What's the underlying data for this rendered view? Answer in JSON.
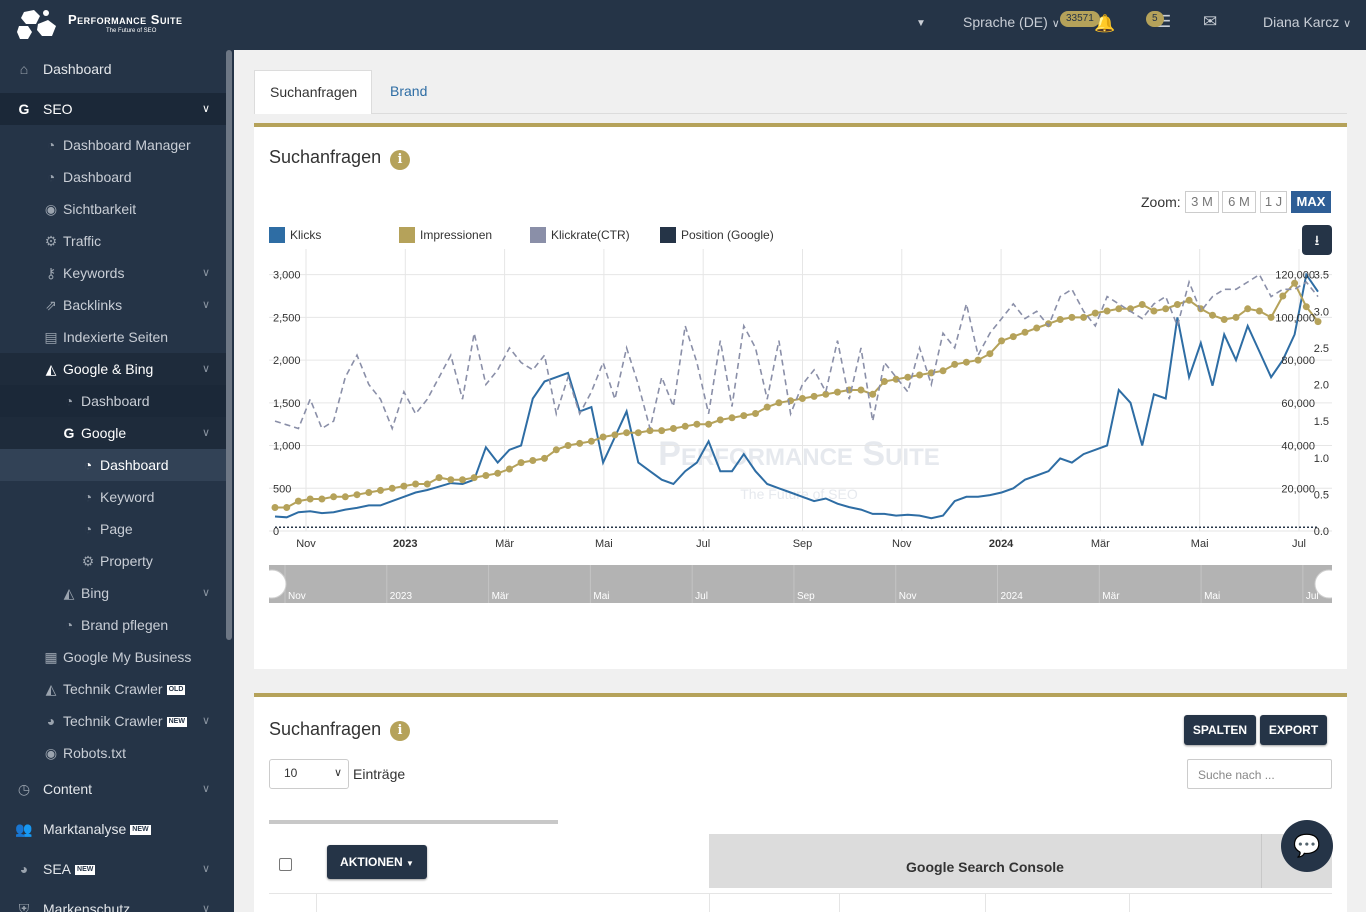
{
  "header": {
    "logo_title": "Performance Suite",
    "logo_subtitle": "The Future of SEO",
    "language": "Sprache (DE)",
    "notifications_count": "33571",
    "tasks_count": "5",
    "user_name": "Diana Karcz"
  },
  "sidebar": {
    "items": [
      {
        "label": "Dashboard",
        "icon": "home-icon"
      },
      {
        "label": "SEO",
        "icon": "google-icon"
      },
      {
        "label": "Dashboard Manager",
        "icon": "dashboard-icon"
      },
      {
        "label": "Dashboard",
        "icon": "dashboard-icon"
      },
      {
        "label": "Sichtbarkeit",
        "icon": "eye-icon"
      },
      {
        "label": "Traffic",
        "icon": "cogs-icon"
      },
      {
        "label": "Keywords",
        "icon": "key-icon"
      },
      {
        "label": "Backlinks",
        "icon": "external-link-icon"
      },
      {
        "label": "Indexierte Seiten",
        "icon": "file-icon"
      },
      {
        "label": "Google & Bing",
        "icon": "area-chart-icon"
      },
      {
        "label": "Dashboard",
        "icon": "dashboard-icon"
      },
      {
        "label": "Google",
        "icon": "google-icon"
      },
      {
        "label": "Dashboard",
        "icon": "dashboard-icon"
      },
      {
        "label": "Keyword",
        "icon": "dashboard-icon"
      },
      {
        "label": "Page",
        "icon": "dashboard-icon"
      },
      {
        "label": "Property",
        "icon": "cogs-icon"
      },
      {
        "label": "Bing",
        "icon": "area-chart-icon"
      },
      {
        "label": "Brand pflegen",
        "icon": "dashboard-icon"
      },
      {
        "label": "Google My Business",
        "icon": "store-icon"
      },
      {
        "label": "Technik Crawler",
        "icon": "area-chart-icon",
        "tag": "OLD"
      },
      {
        "label": "Technik Crawler",
        "icon": "pie-chart-icon",
        "tag": "NEW"
      },
      {
        "label": "Robots.txt",
        "icon": "eye-icon"
      },
      {
        "label": "Content",
        "icon": "clock-icon"
      },
      {
        "label": "Marktanalyse",
        "icon": "users-icon",
        "tag": "NEW"
      },
      {
        "label": "SEA",
        "icon": "pie-chart-icon",
        "tag": "NEW"
      },
      {
        "label": "Markenschutz",
        "icon": "shield-icon"
      }
    ]
  },
  "tabs": [
    {
      "label": "Suchanfragen"
    },
    {
      "label": "Brand"
    }
  ],
  "chart_card": {
    "title": "Suchanfragen",
    "zoom_label": "Zoom:",
    "zoom_options": [
      "3 M",
      "6 M",
      "1 J",
      "MAX"
    ],
    "zoom_selected": "MAX",
    "watermark_title": "Performance Suite",
    "watermark_sub": "The Future of SEO"
  },
  "colors": {
    "klicks": "#2e6da4",
    "impressionen": "#b5a25a",
    "ctr": "#8a8fa8",
    "position": "#253447",
    "accent": "#b5a25a",
    "dark": "#253447"
  },
  "chart_data": {
    "type": "line",
    "x_axis_labels": [
      "Nov",
      "2023",
      "Mär",
      "Mai",
      "Jul",
      "Sep",
      "Nov",
      "2024",
      "Mär",
      "Mai",
      "Jul"
    ],
    "navigator_labels": [
      "Nov",
      "2023",
      "Mär",
      "Mai",
      "Jul",
      "Sep",
      "Nov",
      "2024",
      "Mär",
      "Mai",
      "Jul"
    ],
    "y_left_ticks": [
      "3,000",
      "2,500",
      "2,000",
      "1,500",
      "1,000",
      "500",
      "0"
    ],
    "y_impr_ticks": [
      "120,000",
      "100,000",
      "80,000",
      "60,000",
      "40,000",
      "20,000"
    ],
    "y_ctr_ticks": [
      "3.5",
      "3.0",
      "2.5",
      "2.0",
      "1.5",
      "1.0",
      "0.5",
      "0.0"
    ],
    "legend": [
      "Klicks",
      "Impressionen",
      "Klickrate(CTR)",
      "Position (Google)"
    ],
    "ylim_left": [
      0,
      3000
    ],
    "ylim_impressionen": [
      0,
      120000
    ],
    "ylim_ctr": [
      0,
      3.5
    ],
    "series": [
      {
        "name": "Klicks",
        "axis": "left",
        "values": [
          170,
          160,
          220,
          230,
          210,
          220,
          250,
          270,
          300,
          300,
          350,
          400,
          450,
          480,
          520,
          560,
          550,
          600,
          980,
          800,
          950,
          1000,
          1550,
          1750,
          1800,
          1850,
          1400,
          1450,
          800,
          1100,
          1400,
          800,
          700,
          600,
          550,
          700,
          800,
          1050,
          700,
          700,
          900,
          700,
          550,
          500,
          450,
          400,
          350,
          380,
          320,
          280,
          250,
          200,
          200,
          180,
          190,
          180,
          150,
          180,
          350,
          400,
          400,
          420,
          450,
          500,
          600,
          650,
          700,
          850,
          800,
          900,
          950,
          1000,
          1650,
          1500,
          1000,
          1600,
          1550,
          2500,
          1800,
          2200,
          1700,
          2300,
          2000,
          2400,
          2100,
          1800,
          2000,
          2300,
          3000,
          2800
        ]
      },
      {
        "name": "Impressionen",
        "axis": "impr",
        "values": [
          11000,
          11000,
          14000,
          15000,
          15000,
          16000,
          16000,
          17000,
          18000,
          19000,
          20000,
          21000,
          22000,
          22000,
          25000,
          24000,
          24000,
          25000,
          26000,
          27000,
          29000,
          32000,
          33000,
          34000,
          38000,
          40000,
          41000,
          42000,
          44000,
          45000,
          46000,
          46000,
          47000,
          47000,
          48000,
          49000,
          50000,
          50000,
          52000,
          53000,
          54000,
          55000,
          58000,
          60000,
          61000,
          62000,
          63000,
          64000,
          65000,
          66000,
          66000,
          64000,
          70000,
          71000,
          72000,
          73000,
          74000,
          75000,
          78000,
          79000,
          80000,
          83000,
          89000,
          91000,
          93000,
          95000,
          97000,
          99000,
          100000,
          100000,
          102000,
          103000,
          104000,
          104000,
          106000,
          103000,
          104000,
          106000,
          108000,
          104000,
          101000,
          99000,
          100000,
          104000,
          103000,
          100000,
          110000,
          116000,
          105000,
          98000
        ]
      },
      {
        "name": "Klickrate(CTR)",
        "axis": "ctr",
        "values": [
          1.5,
          1.45,
          1.4,
          1.8,
          1.4,
          1.5,
          2.1,
          2.4,
          2.0,
          1.8,
          1.4,
          1.9,
          1.6,
          1.8,
          2.1,
          2.4,
          1.8,
          2.7,
          2.0,
          2.2,
          2.5,
          2.3,
          2.2,
          2.4,
          1.6,
          2.1,
          1.6,
          1.9,
          2.3,
          1.8,
          2.5,
          2.0,
          1.4,
          2.1,
          1.7,
          2.8,
          2.3,
          1.6,
          2.6,
          1.7,
          2.8,
          2.5,
          1.8,
          2.6,
          1.6,
          2.0,
          2.2,
          1.9,
          2.6,
          1.8,
          2.5,
          1.5,
          2.3,
          2.1,
          1.9,
          2.5,
          2.0,
          2.7,
          2.5,
          3.1,
          2.4,
          2.7,
          2.9,
          3.1,
          2.9,
          3.0,
          2.8,
          3.2,
          3.3,
          3.0,
          2.8,
          3.2,
          3.1,
          3.0,
          2.9,
          3.1,
          3.2,
          2.8,
          3.4,
          3.0,
          3.2,
          3.3,
          3.3,
          3.4,
          3.5,
          3.2,
          3.3,
          3.3,
          3.4,
          3.2
        ]
      },
      {
        "name": "Position (Google)",
        "axis": "ctr",
        "values": [
          0.05,
          0.05,
          0.05,
          0.05,
          0.05,
          0.05,
          0.05,
          0.05,
          0.05,
          0.05,
          0.05,
          0.05,
          0.05,
          0.05,
          0.05,
          0.05,
          0.05,
          0.05,
          0.05,
          0.05,
          0.05,
          0.05,
          0.05,
          0.05,
          0.05,
          0.05,
          0.05,
          0.05,
          0.05,
          0.05,
          0.05,
          0.05,
          0.05,
          0.05,
          0.05,
          0.05,
          0.05,
          0.05,
          0.05,
          0.05,
          0.05,
          0.05,
          0.05,
          0.05,
          0.05,
          0.05,
          0.05,
          0.05,
          0.05,
          0.05,
          0.05,
          0.05,
          0.05,
          0.05,
          0.05,
          0.05,
          0.05,
          0.05,
          0.05,
          0.05,
          0.05,
          0.05,
          0.05,
          0.05,
          0.05,
          0.05,
          0.05,
          0.05,
          0.05,
          0.05,
          0.05,
          0.05,
          0.05,
          0.05,
          0.05,
          0.05,
          0.05,
          0.05,
          0.05,
          0.05,
          0.05,
          0.05,
          0.05,
          0.05,
          0.05,
          0.05,
          0.05,
          0.05,
          0.05,
          0.05
        ]
      }
    ]
  },
  "table_card": {
    "title": "Suchanfragen",
    "columns_button": "SPALTEN",
    "export_button": "EXPORT",
    "entries_value": "10",
    "entries_label": "Einträge",
    "search_placeholder": "Suche nach ...",
    "actions_button": "AKTIONEN",
    "group_header": "Google Search Console"
  }
}
